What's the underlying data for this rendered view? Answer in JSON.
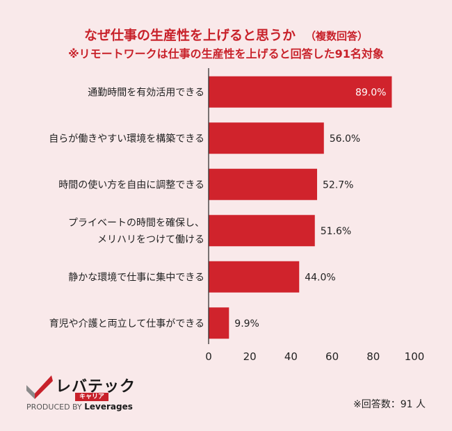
{
  "title": {
    "main": "なぜ仕事の生産性を上げると思うか",
    "sub": "（複数回答）",
    "subtitle": "※リモートワークは仕事の生産性を上げると回答した91名対象"
  },
  "chart_data": {
    "type": "bar",
    "orientation": "horizontal",
    "categories": [
      [
        "通勤時間を有効活用できる"
      ],
      [
        "自らが働きやすい環境を構築できる"
      ],
      [
        "時間の使い方を自由に調整できる"
      ],
      [
        "プライベートの時間を確保し、",
        "メリハリをつけて働ける"
      ],
      [
        "静かな環境で仕事に集中できる"
      ],
      [
        "育児や介護と両立して仕事ができる"
      ]
    ],
    "values": [
      89.0,
      56.0,
      52.7,
      51.6,
      44.0,
      9.9
    ],
    "value_labels": [
      "89.0%",
      "56.0%",
      "52.7%",
      "51.6%",
      "44.0%",
      "9.9%"
    ],
    "xlim": [
      0,
      100
    ],
    "xticks": [
      0,
      20,
      40,
      60,
      80,
      100
    ],
    "bar_color": "#d0232c",
    "grid": false
  },
  "footer": {
    "logo_text": "レバテック",
    "logo_tag": "キャリア",
    "produced_by": "PRODUCED BY",
    "brand": "Leverages",
    "note": "※回答数：91 人"
  }
}
